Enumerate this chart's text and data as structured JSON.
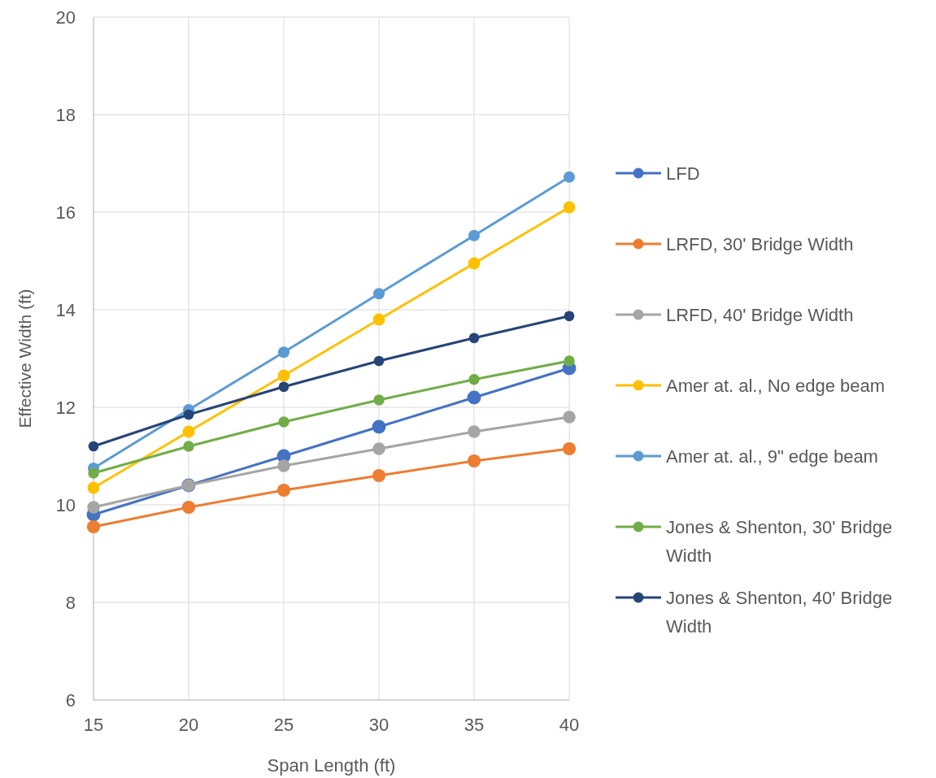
{
  "chart_data": {
    "type": "line",
    "xlabel": "Span Length (ft)",
    "ylabel": "Effective Width (ft)",
    "x": [
      15,
      20,
      25,
      30,
      35,
      40
    ],
    "xlim": [
      15,
      40
    ],
    "xticks": [
      15,
      20,
      25,
      30,
      35,
      40
    ],
    "ylim": [
      6,
      20
    ],
    "yticks": [
      6,
      8,
      10,
      12,
      14,
      16,
      18,
      20
    ],
    "grid": true,
    "legend": "right",
    "marker": "circle",
    "series": [
      {
        "name": "LFD",
        "color": "#4472c4",
        "values": [
          9.8,
          10.4,
          11.0,
          11.6,
          12.2,
          12.8
        ]
      },
      {
        "name": "LRFD, 30' Bridge Width",
        "color": "#ed7d31",
        "values": [
          9.55,
          9.95,
          10.3,
          10.6,
          10.9,
          11.15
        ]
      },
      {
        "name": "LRFD, 40' Bridge Width",
        "color": "#a5a5a5",
        "values": [
          9.95,
          10.4,
          10.8,
          11.15,
          11.5,
          11.8
        ]
      },
      {
        "name": "Amer at. al., No edge beam",
        "color": "#ffc000",
        "values": [
          10.35,
          11.5,
          12.65,
          13.8,
          14.95,
          16.1
        ]
      },
      {
        "name": "Amer at. al., 9\" edge beam",
        "color": "#5b9bd5",
        "values": [
          10.75,
          11.95,
          13.13,
          14.33,
          15.52,
          16.72
        ]
      },
      {
        "name": "Jones & Shenton, 30' Bridge Width",
        "color": "#70ad47",
        "values": [
          10.65,
          11.2,
          11.7,
          12.15,
          12.57,
          12.95
        ]
      },
      {
        "name": "Jones & Shenton, 40' Bridge Width",
        "color": "#264478",
        "values": [
          11.2,
          11.85,
          12.42,
          12.95,
          13.42,
          13.87
        ]
      }
    ]
  }
}
